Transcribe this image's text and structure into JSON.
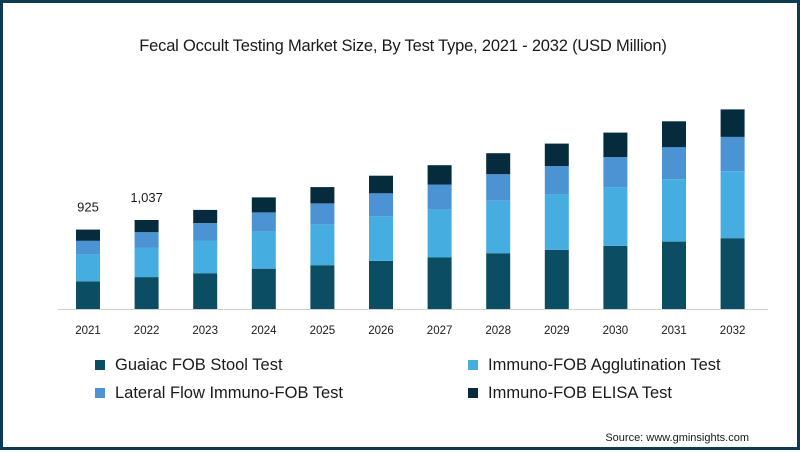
{
  "chart_data": {
    "type": "bar",
    "stacked": true,
    "title": "Fecal Occult Testing Market Size, By Test Type, 2021 - 2032 (USD Million)",
    "categories": [
      "2021",
      "2022",
      "2023",
      "2024",
      "2025",
      "2026",
      "2027",
      "2028",
      "2029",
      "2030",
      "2031",
      "2032"
    ],
    "series": [
      {
        "name": "Guaiac FOB Stool Test",
        "color": "#0b4d62",
        "values": [
          322,
          372,
          417,
          470,
          510,
          560,
          600,
          650,
          690,
          735,
          785,
          825
        ]
      },
      {
        "name": "Immuno-FOB Agglutination Test",
        "color": "#45ade0",
        "values": [
          312,
          340,
          382,
          430,
          475,
          520,
          560,
          610,
          645,
          685,
          727,
          780
        ]
      },
      {
        "name": "Lateral Flow Immuno-FOB Test",
        "color": "#4b93d3",
        "values": [
          160,
          183,
          200,
          225,
          245,
          268,
          290,
          310,
          330,
          350,
          375,
          400
        ]
      },
      {
        "name": "Immuno-FOB ELISA Test",
        "color": "#062b3c",
        "values": [
          131,
          142,
          155,
          175,
          190,
          205,
          225,
          245,
          262,
          285,
          300,
          320
        ]
      }
    ],
    "data_labels": [
      {
        "category": "2021",
        "text": "925"
      },
      {
        "category": "2022",
        "text": "1,037"
      }
    ],
    "ylim": [
      0,
      2400
    ],
    "grid": false,
    "legend_position": "bottom"
  },
  "source": "Source: www.gminsights.com"
}
